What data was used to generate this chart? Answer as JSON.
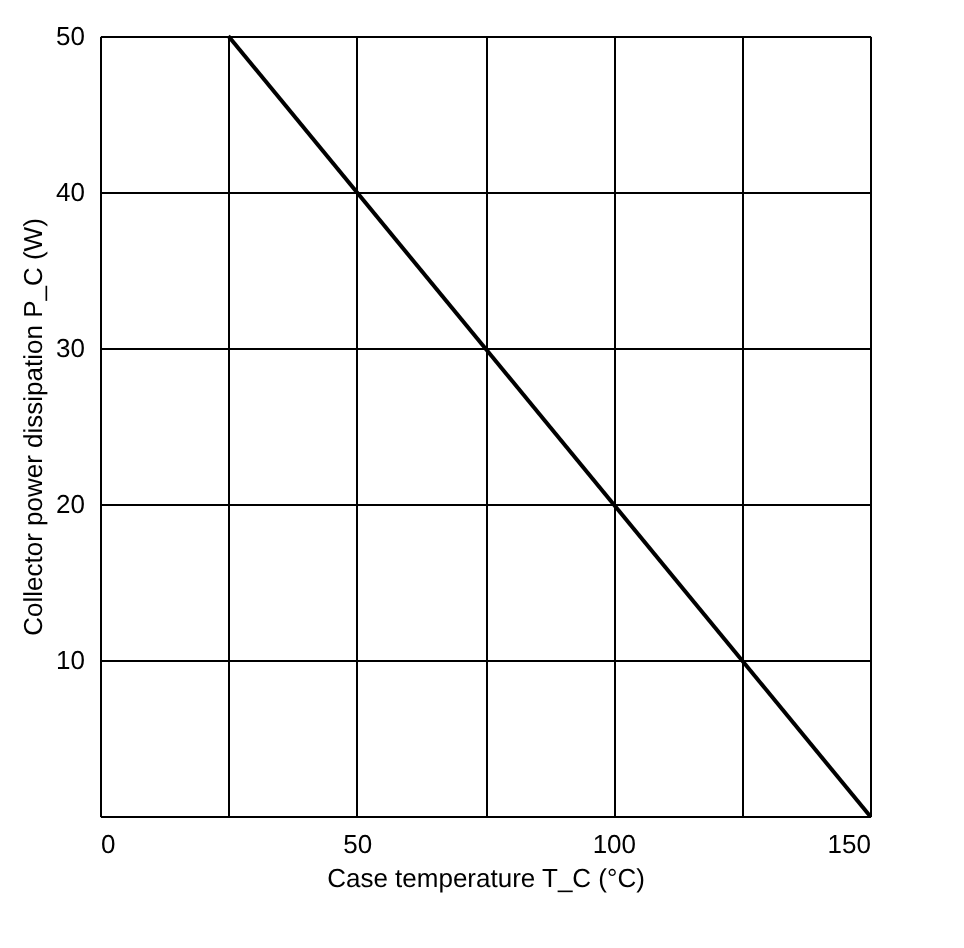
{
  "chart_data": {
    "type": "line",
    "xlabel": "Case temperature  T_C  (°C)",
    "ylabel": "Collector power dissipation  P_C  (W)",
    "x": [
      25,
      150
    ],
    "series": [
      {
        "color": "#000000",
        "values": [
          50,
          0
        ]
      }
    ],
    "xlim": [
      0,
      150
    ],
    "xticks": [
      0,
      {
        "value": 25,
        "label": null
      },
      50,
      {
        "value": 75,
        "label": null
      },
      100,
      {
        "value": 125,
        "label": null
      },
      150
    ],
    "ylim": [
      0,
      50
    ],
    "yticks": [
      {
        "value": 0,
        "label": null
      },
      10,
      20,
      30,
      40,
      50
    ],
    "grid": true,
    "marker": "none",
    "line_style": "solid"
  }
}
